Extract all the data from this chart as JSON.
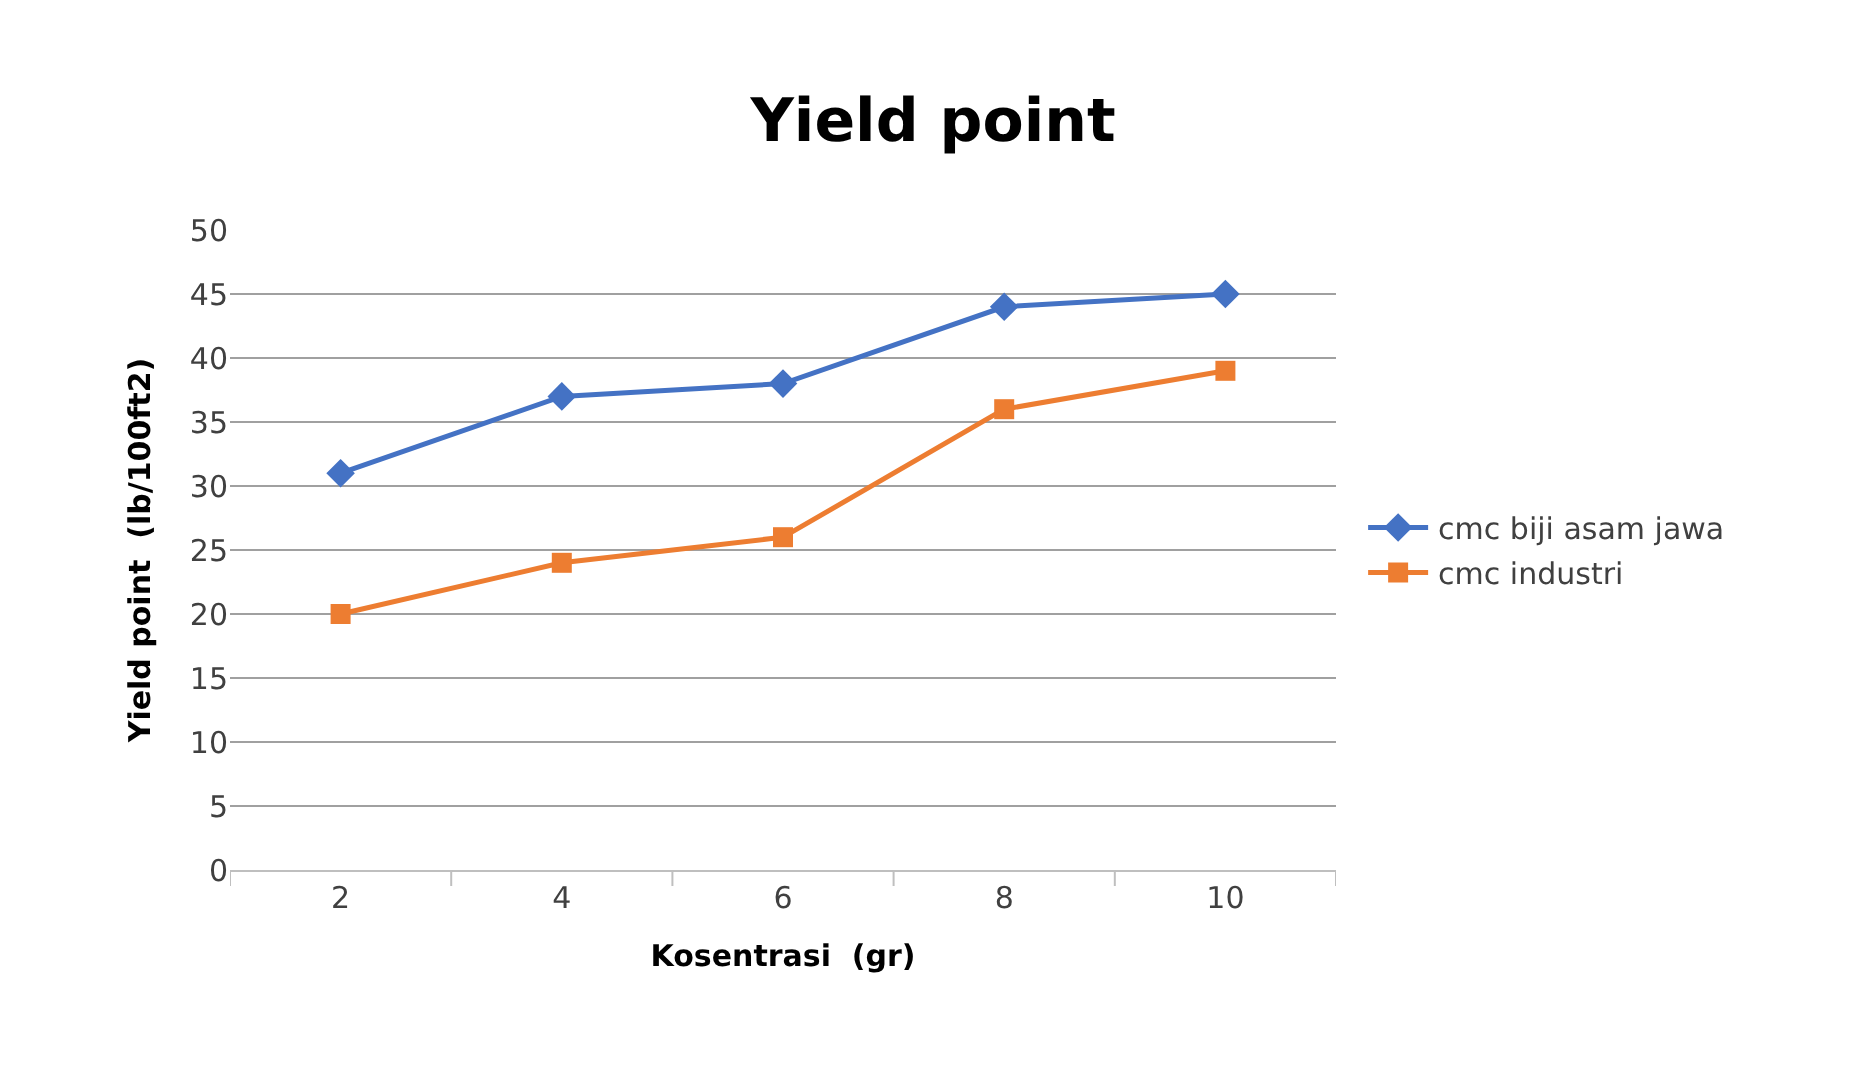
{
  "chart_data": {
    "type": "line",
    "title": "Yield point",
    "xlabel": "Kosentrasi  (gr)",
    "ylabel": "Yield point  (lb/100ft2)",
    "categories": [
      "2",
      "4",
      "6",
      "8",
      "10"
    ],
    "series": [
      {
        "name": "cmc biji asam jawa",
        "color": "#4472c4",
        "marker": "diamond",
        "values": [
          31,
          37,
          38,
          44,
          45
        ]
      },
      {
        "name": "cmc industri",
        "color": "#ed7d31",
        "marker": "square",
        "values": [
          20,
          24,
          26,
          36,
          39
        ]
      }
    ],
    "ylim": [
      0,
      50
    ],
    "yticks": [
      0,
      5,
      10,
      15,
      20,
      25,
      30,
      35,
      40,
      45,
      50
    ],
    "grid": "y",
    "legend": "right",
    "line_style": "solid"
  }
}
